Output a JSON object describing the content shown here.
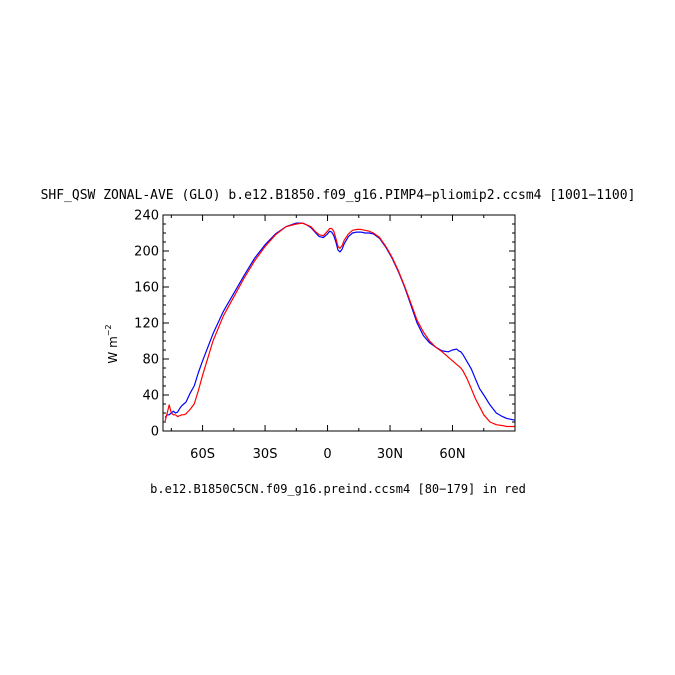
{
  "chart_data": {
    "type": "line",
    "title": "SHF_QSW ZONAL-AVE (GLO) b.e12.B1850.f09_g16.PIMP4−pliomip2.ccsm4 [1001−1100]",
    "ylabel_main": "W m",
    "ylabel_exp": "−2",
    "footnote": "b.e12.B1850C5CN.f09_g16.preind.ccsm4 [80−179] in red",
    "xlim": [
      -79,
      90
    ],
    "ylim": [
      0,
      240
    ],
    "xticks": [
      {
        "value": -60,
        "label": "60S"
      },
      {
        "value": -30,
        "label": "30S"
      },
      {
        "value": 0,
        "label": "0"
      },
      {
        "value": 30,
        "label": "30N"
      },
      {
        "value": 60,
        "label": "60N"
      }
    ],
    "yticks": [
      {
        "value": 0,
        "label": "0"
      },
      {
        "value": 40,
        "label": "40"
      },
      {
        "value": 80,
        "label": "80"
      },
      {
        "value": 120,
        "label": "120"
      },
      {
        "value": 160,
        "label": "160"
      },
      {
        "value": 200,
        "label": "200"
      },
      {
        "value": 240,
        "label": "240"
      }
    ],
    "grid": false,
    "series": [
      {
        "color": "#0000ff",
        "x": [
          -78,
          -77,
          -76,
          -75,
          -74,
          -73,
          -72,
          -71,
          -70,
          -69,
          -68,
          -66,
          -64,
          -62,
          -60,
          -55,
          -50,
          -45,
          -40,
          -35,
          -30,
          -25,
          -20,
          -15,
          -12,
          -10,
          -8,
          -6,
          -4,
          -2,
          0,
          1,
          2,
          3,
          4,
          5,
          6,
          7,
          8,
          10,
          12,
          14,
          16,
          18,
          20,
          22,
          25,
          28,
          31,
          34,
          37,
          40,
          43,
          46,
          49,
          52,
          55,
          58,
          60,
          62,
          63,
          64,
          65,
          67,
          69,
          71,
          73,
          75,
          78,
          81,
          84,
          86,
          88,
          90
        ],
        "y": [
          15,
          18,
          18,
          20,
          22,
          20,
          21,
          25,
          28,
          30,
          32,
          42,
          50,
          65,
          78,
          108,
          133,
          153,
          173,
          192,
          207,
          219,
          227,
          231,
          231,
          229,
          226,
          221,
          216,
          215,
          219,
          222,
          221,
          217,
          210,
          201,
          199,
          202,
          208,
          216,
          220,
          221,
          221,
          220,
          220,
          219,
          214,
          204,
          192,
          177,
          160,
          140,
          120,
          106,
          98,
          93,
          89,
          88,
          90,
          91,
          89,
          88,
          85,
          77,
          69,
          58,
          47,
          40,
          29,
          20,
          16,
          14,
          13,
          12
        ]
      },
      {
        "color": "#ff0000",
        "x": [
          -78,
          -77,
          -76,
          -75,
          -74,
          -73,
          -72,
          -71,
          -70,
          -69,
          -68,
          -66,
          -64,
          -62,
          -60,
          -55,
          -50,
          -45,
          -40,
          -35,
          -30,
          -25,
          -20,
          -15,
          -12,
          -10,
          -8,
          -6,
          -4,
          -2,
          0,
          1,
          2,
          3,
          4,
          5,
          6,
          7,
          8,
          10,
          12,
          14,
          16,
          18,
          20,
          22,
          25,
          28,
          31,
          34,
          37,
          40,
          43,
          46,
          49,
          52,
          55,
          58,
          60,
          62,
          63,
          64,
          65,
          67,
          69,
          71,
          73,
          75,
          78,
          81,
          84,
          86,
          88,
          90
        ],
        "y": [
          11,
          20,
          29,
          20,
          18,
          18,
          16,
          17,
          18,
          18,
          19,
          24,
          30,
          45,
          62,
          100,
          128,
          149,
          170,
          189,
          205,
          218,
          227,
          230,
          231,
          229,
          227,
          222,
          218,
          217,
          222,
          225,
          225,
          222,
          214,
          205,
          203,
          206,
          212,
          219,
          223,
          224,
          224,
          223,
          222,
          220,
          215,
          205,
          193,
          178,
          161,
          142,
          123,
          110,
          100,
          93,
          88,
          82,
          78,
          74,
          72,
          70,
          67,
          58,
          47,
          36,
          27,
          18,
          10,
          7,
          6,
          5,
          5,
          5
        ]
      }
    ]
  }
}
